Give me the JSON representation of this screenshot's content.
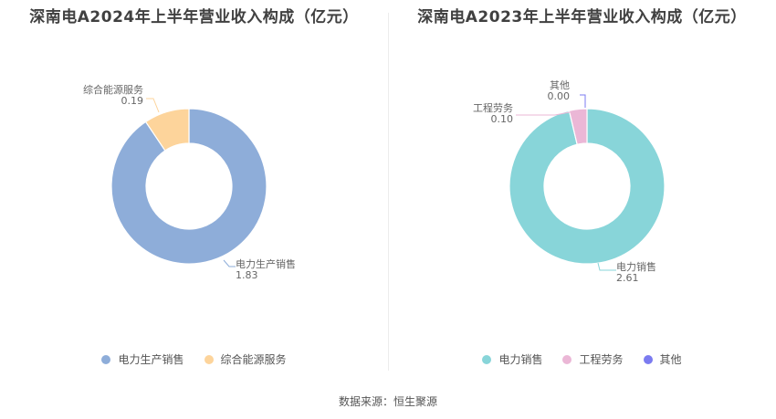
{
  "chart_data": [
    {
      "type": "pie",
      "title": "深南电A2024年上半年营业收入构成（亿元）",
      "categories": [
        "电力生产销售",
        "综合能源服务"
      ],
      "values": [
        1.83,
        0.19
      ],
      "value_labels": [
        "1.83",
        "0.19"
      ],
      "colors": [
        "#8eadd9",
        "#fdd49b"
      ]
    },
    {
      "type": "pie",
      "title": "深南电A2023年上半年营业收入构成（亿元）",
      "categories": [
        "电力销售",
        "工程劳务",
        "其他"
      ],
      "values": [
        2.61,
        0.1,
        0.0
      ],
      "value_labels": [
        "2.61",
        "0.10",
        "0.00"
      ],
      "colors": [
        "#88d5d9",
        "#ebb7d6",
        "#7b7bf0"
      ]
    }
  ],
  "source": "数据来源：恒生聚源"
}
